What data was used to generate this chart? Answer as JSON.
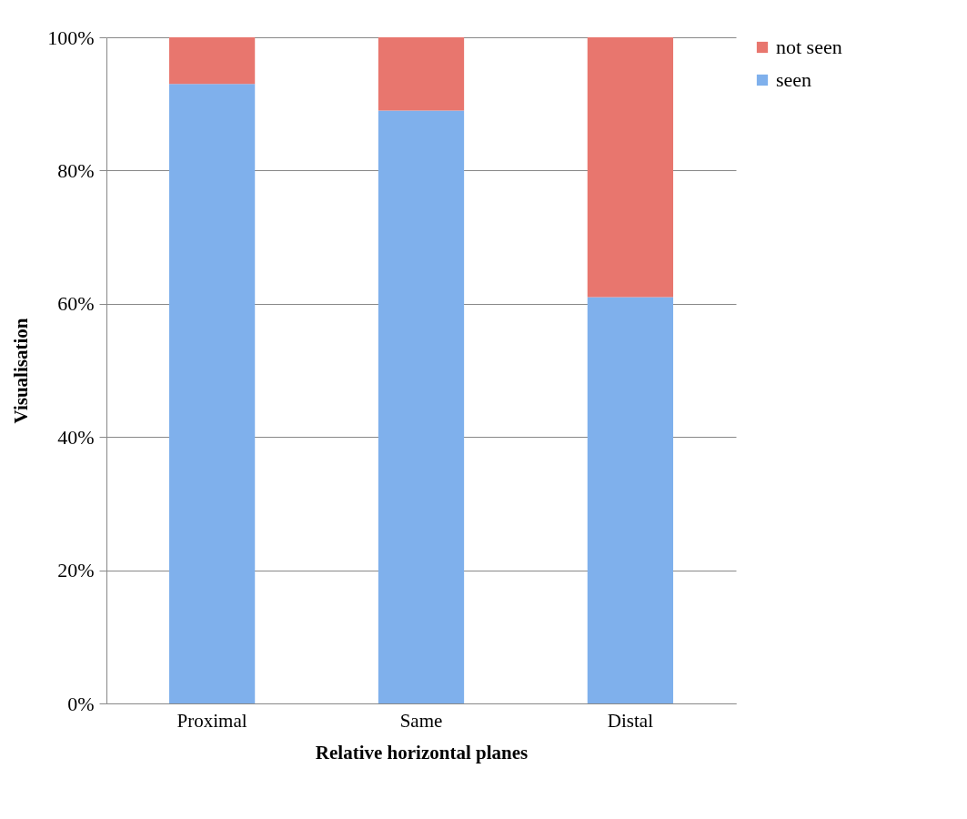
{
  "chart_data": {
    "type": "bar",
    "xlabel": "Relative horizontal planes",
    "ylabel": "Visualisation",
    "categories": [
      "Proximal",
      "Same",
      "Distal"
    ],
    "series": [
      {
        "name": "seen",
        "color": "#7fb0ec",
        "values": [
          93,
          89,
          61
        ]
      },
      {
        "name": "not seen",
        "color": "#e8766e",
        "values": [
          7,
          11,
          39
        ]
      }
    ],
    "stacked": true,
    "ylim": [
      0,
      100
    ],
    "yticks": [
      {
        "value": 0,
        "label": "0%"
      },
      {
        "value": 20,
        "label": "20%"
      },
      {
        "value": 40,
        "label": "40%"
      },
      {
        "value": 60,
        "label": "60%"
      },
      {
        "value": 80,
        "label": "80%"
      },
      {
        "value": 100,
        "label": "100%"
      }
    ],
    "grid": "y",
    "legend": "right"
  }
}
